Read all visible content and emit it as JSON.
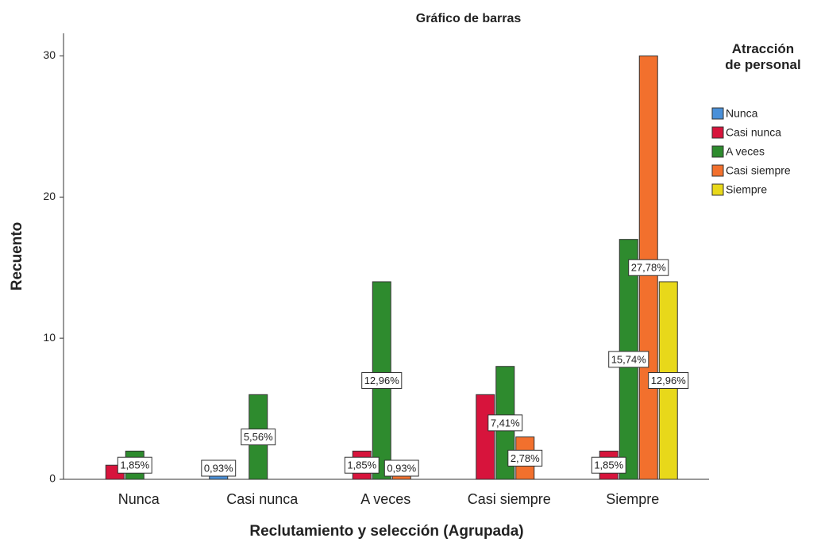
{
  "chart_data": {
    "type": "bar",
    "title": "Gráfico de barras",
    "x_label": "Reclutamiento y selección (Agrupada)",
    "y_label": "Recuento",
    "legend_title": "Atracción de personal",
    "categories": [
      "Nunca",
      "Casi nunca",
      "A veces",
      "Casi siempre",
      "Siempre"
    ],
    "series": [
      {
        "name": "Nunca",
        "color": "#4a90d9",
        "values": [
          null,
          1,
          null,
          null,
          null
        ],
        "value_labels": [
          null,
          "0,93%",
          null,
          null,
          null
        ]
      },
      {
        "name": "Casi nunca",
        "color": "#d7143c",
        "values": [
          1,
          null,
          2,
          6,
          2
        ],
        "value_labels": [
          null,
          null,
          "1,85%",
          null,
          "1,85%"
        ]
      },
      {
        "name": "A veces",
        "color": "#2e8b2e",
        "values": [
          2,
          6,
          14,
          8,
          17
        ],
        "value_labels": [
          "1,85%",
          "5,56%",
          "12,96%",
          "7,41%",
          "15,74%"
        ]
      },
      {
        "name": "Casi siempre",
        "color": "#f2702d",
        "values": [
          null,
          null,
          1,
          3,
          30
        ],
        "value_labels": [
          null,
          null,
          "0,93%",
          "2,78%",
          "27,78%"
        ]
      },
      {
        "name": "Siempre",
        "color": "#e8d81a",
        "values": [
          null,
          null,
          null,
          null,
          14
        ],
        "value_labels": [
          null,
          null,
          null,
          null,
          "12,96%"
        ]
      }
    ],
    "ylim": [
      0,
      31.6
    ],
    "yticks": [
      0,
      10,
      20,
      30
    ],
    "legend": "right"
  }
}
